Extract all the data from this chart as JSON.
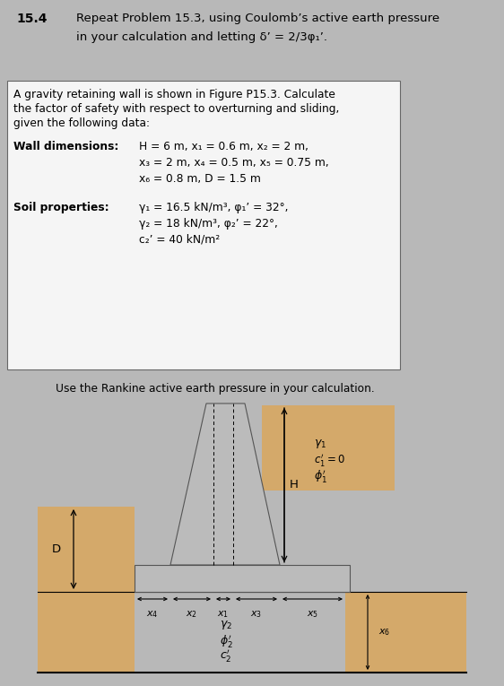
{
  "header_bg": "#c8c8c8",
  "header_num": "15.4",
  "header_text": "Repeat Problem 15.3, using Coulomb’s active earth pressure\nin your calculation and letting δ’ = 2/3φ₁’.",
  "problem_bg": "#e8e8e8",
  "problem_text_intro": "A gravity retaining wall is shown in Figure P15.3. Calculate\nthe factor of safety with respect to overturning and sliding,\ngiven the following data:",
  "wall_label": "Wall dimensions:",
  "wall_dims_line1": "H = 6 m, x₁ = 0.6 m, x₂ = 2 m,",
  "wall_dims_line2": "x₃ = 2 m, x₄ = 0.5 m, x₅ = 0.75 m,",
  "wall_dims_line3": "x₆ = 0.8 m, D = 1.5 m",
  "soil_label": "Soil properties:",
  "soil_line1": "γ₁ = 16.5 kN/m³, φ₁’ = 32°,",
  "soil_line2": "γ₂ = 18 kN/m³, φ₂’ = 22°,",
  "soil_line3": "c₂’ = 40 kN/m²",
  "diagram_caption": "Use the Rankine active earth pressure in your calculation.",
  "sand_color": "#d4a96a",
  "wall_color": "#bbbbbb",
  "wall_outline": "#555555",
  "diagram_bg": "#e8e8e8",
  "header_line2_indent": 0.155
}
